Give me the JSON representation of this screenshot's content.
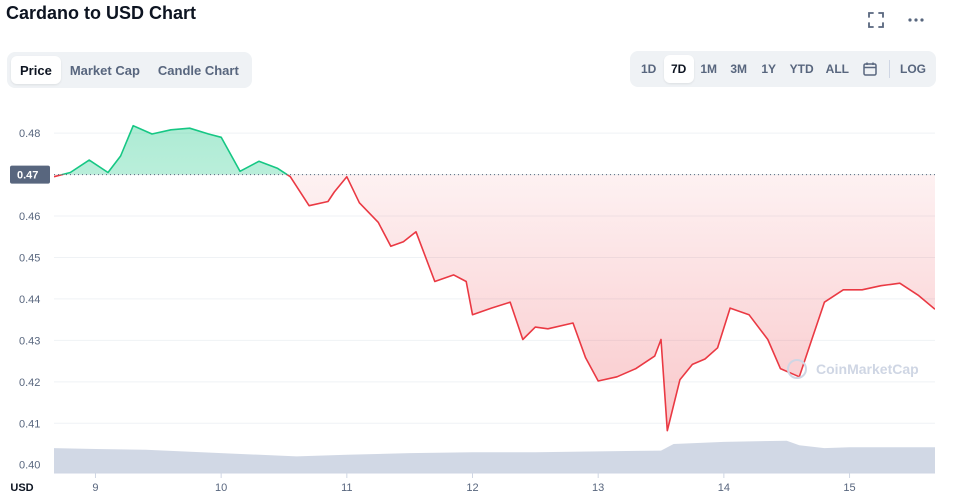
{
  "page": {
    "title": "Cardano to USD Chart",
    "icons": {
      "fullscreen": "fullscreen-icon",
      "more": "more-icon",
      "calendar": "calendar-icon"
    }
  },
  "tabs": [
    {
      "label": "Price",
      "active": true
    },
    {
      "label": "Market Cap",
      "active": false
    },
    {
      "label": "Candle Chart",
      "active": false
    }
  ],
  "ranges": [
    {
      "label": "1D",
      "active": false
    },
    {
      "label": "7D",
      "active": true
    },
    {
      "label": "1M",
      "active": false
    },
    {
      "label": "3M",
      "active": false
    },
    {
      "label": "1Y",
      "active": false
    },
    {
      "label": "YTD",
      "active": false
    },
    {
      "label": "ALL",
      "active": false
    }
  ],
  "log_label": "LOG",
  "watermark": "CoinMarketCap",
  "colors": {
    "up": "#16c784",
    "down": "#ea3943",
    "volume": "#cfd6e4",
    "accent": "#0d1421"
  },
  "chart_data": {
    "type": "line",
    "title": "Cardano to USD Chart",
    "xlabel": "",
    "ylabel": "USD",
    "currency_label": "USD",
    "reference_price": 0.47,
    "reference_label": "0.47",
    "ylim": [
      0.398,
      0.488
    ],
    "xlim": [
      8.67,
      15.68
    ],
    "yticks": [
      0.4,
      0.41,
      0.42,
      0.43,
      0.44,
      0.45,
      0.46,
      0.47,
      0.48
    ],
    "ytick_labels": [
      "0.40",
      "0.41",
      "0.42",
      "0.43",
      "0.44",
      "0.45",
      "0.46",
      "0.47",
      "0.48"
    ],
    "xticks": [
      9,
      10,
      11,
      12,
      13,
      14,
      15
    ],
    "xtick_labels": [
      "9",
      "10",
      "11",
      "12",
      "13",
      "14",
      "15"
    ],
    "series": [
      {
        "type": "line",
        "x": [
          8.67,
          8.8,
          8.95,
          9.1,
          9.2,
          9.3,
          9.45,
          9.6,
          9.75,
          9.9,
          10.0,
          10.15,
          10.3,
          10.45,
          10.55,
          10.7,
          10.85,
          10.9,
          11.0,
          11.1,
          11.25,
          11.35,
          11.45,
          11.55,
          11.7,
          11.85,
          11.95,
          12.0,
          12.15,
          12.3,
          12.4,
          12.5,
          12.6,
          12.8,
          12.9,
          13.0,
          13.15,
          13.3,
          13.45,
          13.5,
          13.55,
          13.65,
          13.75,
          13.85,
          13.95,
          14.05,
          14.2,
          14.35,
          14.45,
          14.6,
          14.7,
          14.8,
          14.95,
          15.1,
          15.25,
          15.4,
          15.55,
          15.68
        ],
        "values": [
          0.4695,
          0.4705,
          0.4735,
          0.4705,
          0.4745,
          0.4818,
          0.4798,
          0.4808,
          0.4812,
          0.4798,
          0.479,
          0.4708,
          0.4732,
          0.4715,
          0.4695,
          0.4625,
          0.4635,
          0.4658,
          0.4695,
          0.4632,
          0.4585,
          0.4527,
          0.4538,
          0.4562,
          0.4442,
          0.4458,
          0.4442,
          0.4362,
          0.4378,
          0.4392,
          0.4302,
          0.4332,
          0.4328,
          0.4342,
          0.4258,
          0.4202,
          0.4212,
          0.4232,
          0.4262,
          0.4302,
          0.4082,
          0.4205,
          0.4242,
          0.4255,
          0.4282,
          0.4378,
          0.4362,
          0.4302,
          0.4232,
          0.4212,
          0.4302,
          0.4392,
          0.4422,
          0.4422,
          0.4432,
          0.4438,
          0.4408,
          0.4375
        ]
      },
      {
        "type": "area",
        "x": [
          8.67,
          9.0,
          9.4,
          10.0,
          10.6,
          11.0,
          11.5,
          12.0,
          12.5,
          13.0,
          13.5,
          13.6,
          14.0,
          14.5,
          14.6,
          14.8,
          15.0,
          15.68
        ],
        "values": [
          0.404,
          0.4038,
          0.4036,
          0.4028,
          0.402,
          0.4024,
          0.4028,
          0.403,
          0.403,
          0.4032,
          0.4034,
          0.405,
          0.4055,
          0.4058,
          0.4047,
          0.404,
          0.4042,
          0.4042
        ]
      }
    ]
  }
}
